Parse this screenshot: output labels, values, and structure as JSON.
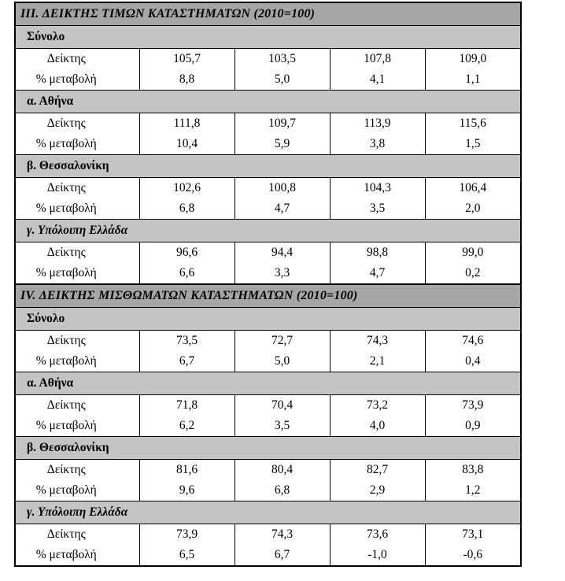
{
  "colors": {
    "page_bg": "#ffffff",
    "section_header_bg": "#a6a6a6",
    "group_header_bg": "#c4c4c4",
    "border": "#000000",
    "text": "#000000"
  },
  "table": {
    "row_labels": {
      "index": "Δείκτης",
      "change": "% μεταβολή"
    },
    "sections": [
      {
        "id": "III",
        "title": "III. ΔΕΙΚΤΗΣ ΤΙΜΩΝ ΚΑΤΑΣΤΗΜΑΤΩΝ (2010=100)",
        "groups": [
          {
            "label": "Σύνολο",
            "italic": false,
            "index": [
              "105,7",
              "103,5",
              "107,8",
              "109,0"
            ],
            "change": [
              "8,8",
              "5,0",
              "4,1",
              "1,1"
            ]
          },
          {
            "label": "α.  Αθήνα",
            "italic": false,
            "index": [
              "111,8",
              "109,7",
              "113,9",
              "115,6"
            ],
            "change": [
              "10,4",
              "5,9",
              "3,8",
              "1,5"
            ]
          },
          {
            "label": "β.  Θεσσαλονίκη",
            "italic": false,
            "index": [
              "102,6",
              "100,8",
              "104,3",
              "106,4"
            ],
            "change": [
              "6,8",
              "4,7",
              "3,5",
              "2,0"
            ]
          },
          {
            "label": "γ. Υπόλοιπη Ελλάδα",
            "italic": true,
            "index": [
              "96,6",
              "94,4",
              "98,8",
              "99,0"
            ],
            "change": [
              "6,6",
              "3,3",
              "4,7",
              "0,2"
            ]
          }
        ]
      },
      {
        "id": "IV",
        "title": "IV. ΔΕΙΚΤΗΣ ΜΙΣΘΩΜΑΤΩΝ ΚΑΤΑΣΤΗΜΑΤΩΝ (2010=100)",
        "groups": [
          {
            "label": "Σύνολο",
            "italic": false,
            "index": [
              "73,5",
              "72,7",
              "74,3",
              "74,6"
            ],
            "change": [
              "6,7",
              "5,0",
              "2,1",
              "0,4"
            ]
          },
          {
            "label": "α.  Αθήνα",
            "italic": false,
            "index": [
              "71,8",
              "70,4",
              "73,2",
              "73,9"
            ],
            "change": [
              "6,2",
              "3,5",
              "4,0",
              "0,9"
            ]
          },
          {
            "label": "β.  Θεσσαλονίκη",
            "italic": false,
            "index": [
              "81,6",
              "80,4",
              "82,7",
              "83,8"
            ],
            "change": [
              "9,6",
              "6,8",
              "2,9",
              "1,2"
            ]
          },
          {
            "label": "γ. Υπόλοιπη Ελλάδα",
            "italic": true,
            "index": [
              "73,9",
              "74,3",
              "73,6",
              "73,1"
            ],
            "change": [
              "6,5",
              "6,7",
              "-1,0",
              "-0,6"
            ]
          }
        ]
      }
    ]
  }
}
